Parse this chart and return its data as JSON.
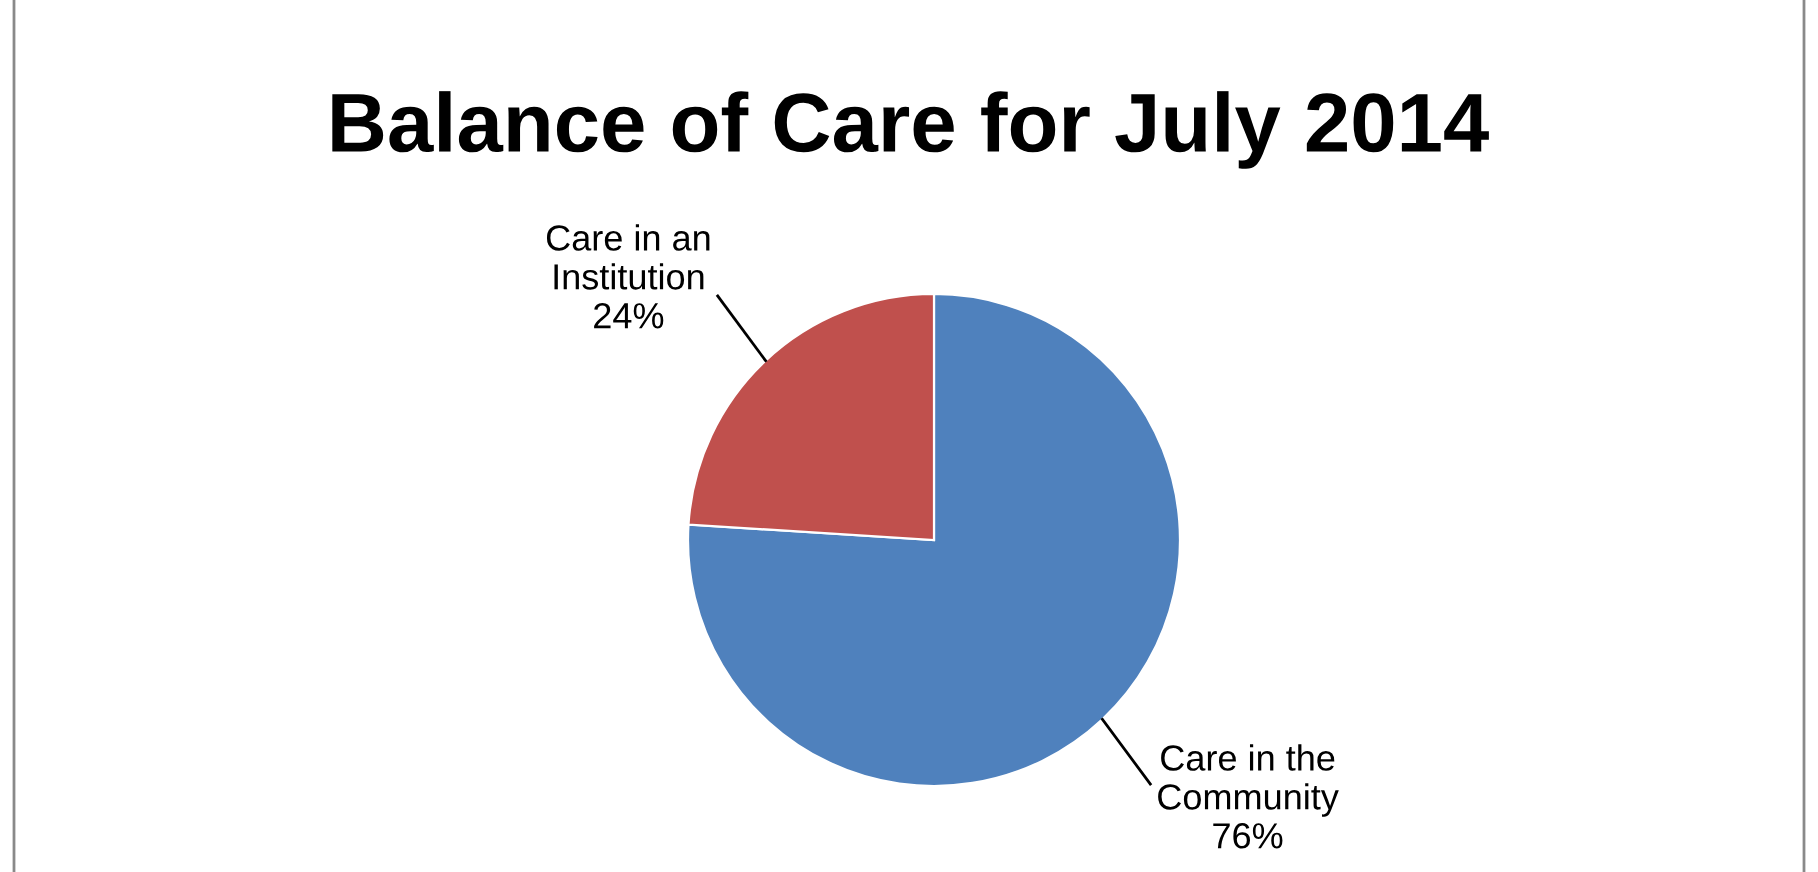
{
  "chart_data": {
    "type": "pie",
    "title": "Balance of Care for July 2014",
    "categories": [
      "Care in the\nCommunity",
      "Care in an\nInstitution"
    ],
    "values": [
      76,
      24
    ],
    "colors": [
      "#4f81bd",
      "#c0504d"
    ],
    "value_labels": [
      "76%",
      "24%"
    ],
    "legend": false
  }
}
